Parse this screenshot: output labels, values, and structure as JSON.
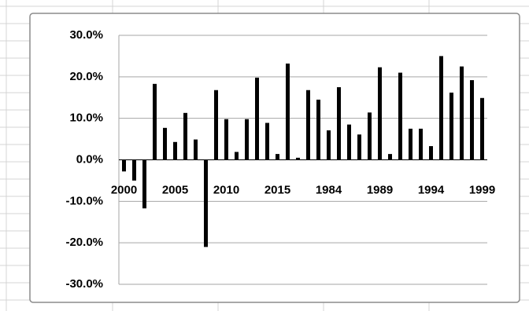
{
  "chart_data": {
    "type": "bar",
    "categories": [
      "2000",
      null,
      null,
      null,
      null,
      "2005",
      null,
      null,
      null,
      null,
      "2010",
      null,
      null,
      null,
      null,
      "2015",
      null,
      null,
      null,
      null,
      "1984",
      null,
      null,
      null,
      null,
      "1989",
      null,
      null,
      null,
      null,
      "1994",
      null,
      null,
      null,
      null,
      "1999"
    ],
    "values": [
      -2.8,
      -5,
      -11.7,
      18.3,
      7.7,
      4.3,
      11.3,
      4.9,
      -21,
      16.8,
      9.8,
      1.9,
      9.8,
      19.8,
      8.9,
      1.4,
      23.2,
      0.5,
      16.8,
      14.5,
      7.1,
      17.5,
      8.5,
      6.1,
      11.4,
      22.3,
      1.4,
      21,
      7.5,
      7.5,
      3.3,
      25,
      16.2,
      22.5,
      19.2,
      14.9
    ],
    "color": "#000000",
    "ylim": [
      -30,
      30
    ],
    "yticks": [
      {
        "value": -30,
        "label": "-30.0%"
      },
      {
        "value": -20,
        "label": "-20.0%"
      },
      {
        "value": -10,
        "label": "-10.0%"
      },
      {
        "value": 0,
        "label": "0.0%"
      },
      {
        "value": 10,
        "label": "10.0%"
      },
      {
        "value": 20,
        "label": "20.0%"
      },
      {
        "value": 30,
        "label": "30.0%"
      }
    ],
    "grid": true
  }
}
